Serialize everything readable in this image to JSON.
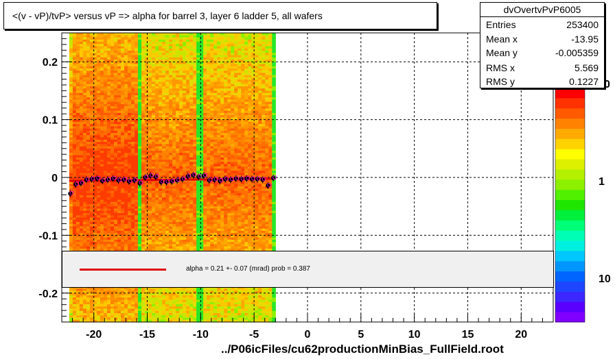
{
  "title": "<(v - vP)/tvP> versus   vP => alpha for barrel 3, layer 6 ladder 5, all wafers",
  "stats": {
    "name": "dvOvertvPvP6005",
    "rows": [
      {
        "label": "Entries",
        "value": "253400"
      },
      {
        "label": "Mean x",
        "value": "-13.95"
      },
      {
        "label": "Mean y",
        "value": "-0.005359"
      },
      {
        "label": "RMS x",
        "value": "5.569"
      },
      {
        "label": "RMS y",
        "value": "0.1227"
      }
    ]
  },
  "fit": {
    "text": "alpha =    0.21 +-  0.07 (mrad) prob = 0.387",
    "line_color": "#e00000"
  },
  "footer": "../P06icFiles/cu62productionMinBias_FullField.root",
  "palette_labels": [
    "0",
    "1",
    "10"
  ],
  "chart_data": {
    "type": "heatmap",
    "x_range": [
      -23,
      23
    ],
    "y_range": [
      -0.25,
      0.25
    ],
    "x_ticks": [
      -20,
      -15,
      -10,
      -5,
      0,
      5,
      10,
      15,
      20
    ],
    "y_ticks": [
      -0.2,
      -0.1,
      0,
      0.1,
      0.2
    ],
    "x_tick_labels": [
      "-20",
      "-15",
      "-10",
      "-5",
      "0",
      "5",
      "10",
      "15",
      "20"
    ],
    "y_tick_labels": [
      "-0.2",
      "-0.1",
      "0",
      "0.1",
      "0.2"
    ],
    "grid": true,
    "heatmap_x_extent": [
      -22.3,
      -3.0
    ],
    "green_bands": [
      [
        -15.9,
        -15.5
      ],
      [
        -10.3,
        -9.8
      ],
      [
        -3.4,
        -3.0
      ]
    ],
    "profile_points": {
      "x": [
        -22.2,
        -21.7,
        -21.2,
        -20.7,
        -20.2,
        -19.7,
        -19.2,
        -18.7,
        -18.2,
        -17.7,
        -17.2,
        -16.7,
        -16.2,
        -15.7,
        -15.2,
        -14.7,
        -14.2,
        -13.7,
        -13.2,
        -12.7,
        -12.2,
        -11.7,
        -11.2,
        -10.7,
        -10.2,
        -9.7,
        -9.2,
        -8.7,
        -8.2,
        -7.7,
        -7.2,
        -6.7,
        -6.2,
        -5.7,
        -5.2,
        -4.7,
        -4.2,
        -3.7,
        -3.2
      ],
      "y": [
        -0.028,
        -0.012,
        -0.01,
        -0.004,
        -0.003,
        -0.002,
        -0.006,
        -0.004,
        -0.002,
        -0.005,
        -0.004,
        -0.007,
        -0.005,
        -0.01,
        0.0,
        0.003,
        0.001,
        -0.008,
        -0.008,
        -0.007,
        -0.005,
        -0.003,
        0.002,
        0.004,
        0.001,
        0.003,
        -0.005,
        -0.004,
        -0.006,
        -0.003,
        -0.004,
        -0.002,
        -0.003,
        -0.002,
        -0.003,
        -0.003,
        -0.004,
        -0.014,
        -0.001
      ]
    },
    "fit_line": {
      "x": [
        -22.3,
        -3.0
      ],
      "y": [
        -0.006,
        -0.002
      ],
      "color": "#e00000"
    },
    "palette_colors": [
      "#7f00ff",
      "#5a00ff",
      "#3c28ff",
      "#1e46ff",
      "#0064ff",
      "#0096ff",
      "#00c8ff",
      "#00f0e0",
      "#00ffb4",
      "#00ff78",
      "#00f03c",
      "#1ee600",
      "#50f000",
      "#8cf000",
      "#b4f000",
      "#dcf000",
      "#ffff00",
      "#ffd200",
      "#ffaa00",
      "#ff8200",
      "#ff5a00",
      "#ff3200",
      "#ff0000"
    ]
  }
}
